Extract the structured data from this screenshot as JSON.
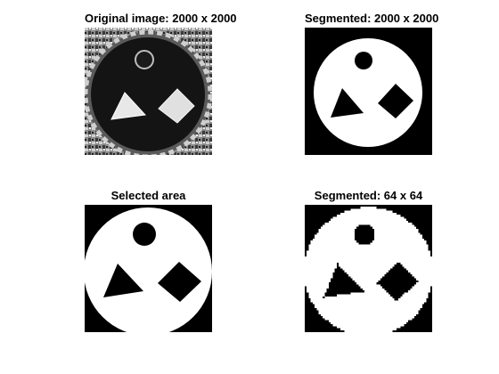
{
  "figure": {
    "panels": [
      {
        "title": "Original image: 2000 x 2000"
      },
      {
        "title": "Segmented: 2000 x 2000"
      },
      {
        "title": "Selected area"
      },
      {
        "title": "Segmented: 64 x 64"
      }
    ]
  },
  "colors": {
    "background": "#ffffff",
    "foreground": "#000000",
    "mask_white": "#ffffff",
    "mask_black": "#000000",
    "photo_dark": "#141414",
    "photo_light": "#e8e8e8"
  }
}
